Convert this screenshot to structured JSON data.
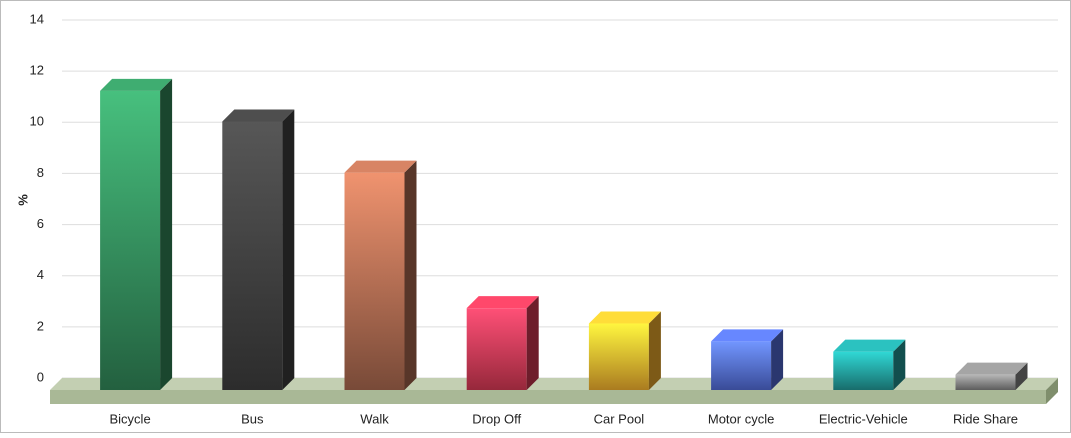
{
  "chart_data": {
    "type": "bar3d",
    "y_label": "%",
    "categories": [
      "Bicycle",
      "Bus",
      "Walk",
      "Drop Off",
      "Car Pool",
      "Motor cycle",
      "Electric-Vehicle",
      "Ride Share"
    ],
    "values": [
      11.7,
      10.5,
      8.5,
      3.2,
      2.6,
      1.9,
      1.5,
      0.6
    ],
    "colors": [
      "#2f8054",
      "#3a3a3a",
      "#a0624a",
      "#c8354f",
      "#e3a42a",
      "#4c64c9",
      "#20908e",
      "#7a7a7a"
    ],
    "ylim": [
      0,
      14
    ],
    "yticks": [
      0,
      2,
      4,
      6,
      8,
      10,
      12,
      14
    ],
    "grid": true
  }
}
